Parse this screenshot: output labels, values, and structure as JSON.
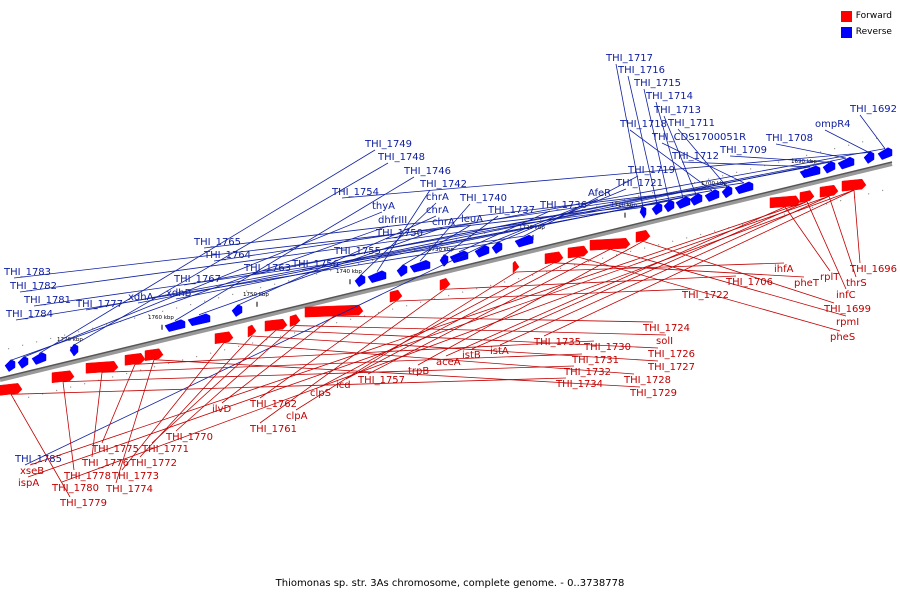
{
  "colors": {
    "forward": "#ff0000",
    "reverse": "#0000ff",
    "forward_label": "#c00000",
    "reverse_label": "#1020a0"
  },
  "legend": [
    {
      "label": "Forward",
      "color": "#ff0000"
    },
    {
      "label": "Reverse",
      "color": "#0000ff"
    }
  ],
  "caption": "Thiomonas sp. str. 3As chromosome, complete genome. - 0..3738778",
  "ticks": [
    "1690 kbp",
    "1700 kbp",
    "1710 kbp",
    "1720 kbp",
    "1730 kbp",
    "1740 kbp",
    "1750 kbp",
    "1760 kbp",
    "1770 kbp"
  ],
  "reverse_genes": [
    "THI_1692",
    "ompR4",
    "THI_1708",
    "THI_1709",
    "THI_1712",
    "THI_CDS1700051R",
    "THI_1711",
    "THI_1718",
    "THI_1713",
    "THI_1714",
    "THI_1715",
    "THI_1716",
    "THI_1717",
    "THI_1719",
    "THI_1721",
    "AfeR",
    "THI_1736",
    "THI_1737",
    "THI_1740",
    "leuA",
    "THI_1742",
    "chrA",
    "chrA",
    "chrA",
    "THI_1746",
    "THI_1748",
    "THI_1749",
    "thyA",
    "dhfrIII",
    "THI_1750",
    "THI_1754",
    "THI_1755",
    "THI_1756",
    "THI_1763",
    "THI_1764",
    "THI_1765",
    "THI_1767",
    "xdhB",
    "xdhA",
    "THI_1777",
    "THI_1783",
    "THI_1782",
    "THI_1781",
    "THI_1784",
    "THI_1785"
  ],
  "forward_genes": [
    "THI_1696",
    "thrS",
    "infC",
    "rplT",
    "THI_1699",
    "rpmI",
    "pheS",
    "pheT",
    "ihfA",
    "THI_1706",
    "THI_1722",
    "THI_1724",
    "solI",
    "THI_1726",
    "THI_1727",
    "THI_1728",
    "THI_1729",
    "THI_1730",
    "THI_1731",
    "THI_1732",
    "THI_1734",
    "THI_1735",
    "istA",
    "istB",
    "aceA",
    "trpB",
    "THI_1757",
    "icd",
    "clpS",
    "clpA",
    "THI_1761",
    "THI_1762",
    "ilvD",
    "THI_1770",
    "THI_1771",
    "THI_1772",
    "THI_1773",
    "THI_1774",
    "THI_1775",
    "THI_1776",
    "THI_1778",
    "THI_1779",
    "THI_1780",
    "ispA",
    "xseB"
  ]
}
